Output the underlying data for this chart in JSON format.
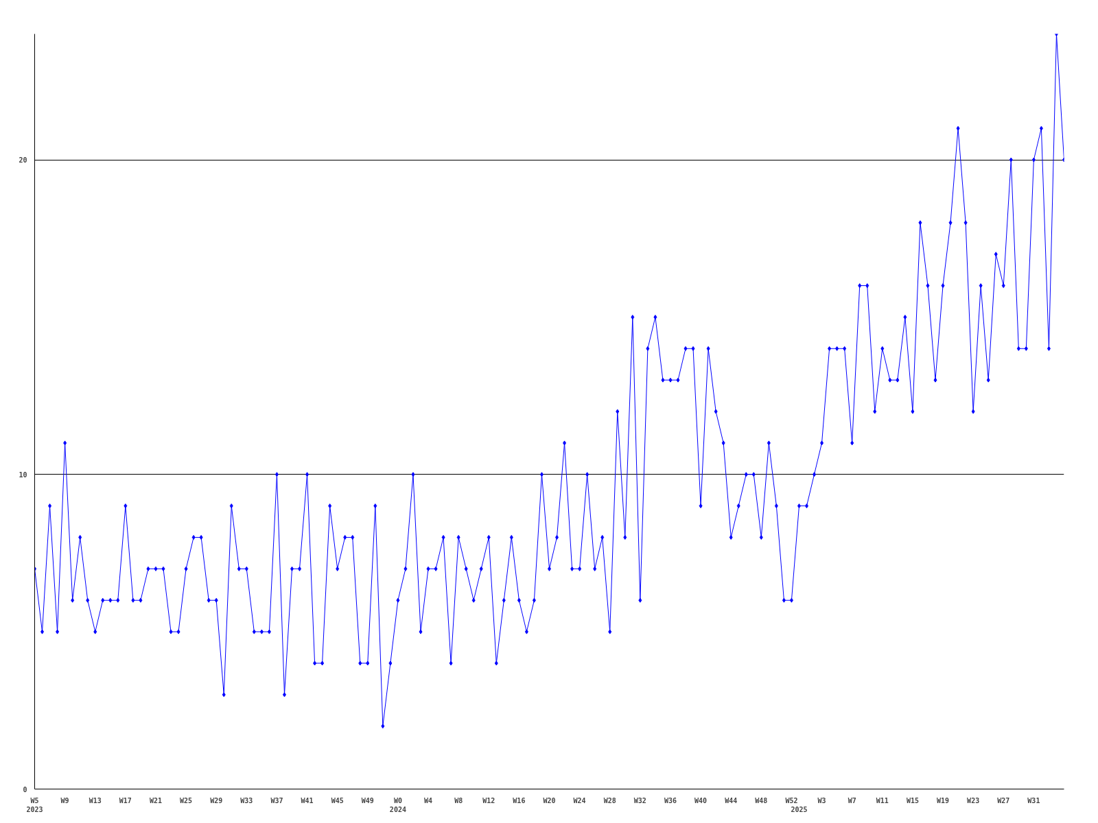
{
  "chart_data": {
    "type": "line",
    "categories": [
      "W5\n2023",
      null,
      null,
      null,
      "W9",
      null,
      null,
      null,
      "W13",
      null,
      null,
      null,
      "W17",
      null,
      null,
      null,
      "W21",
      null,
      null,
      null,
      "W25",
      null,
      null,
      null,
      "W29",
      null,
      null,
      null,
      "W33",
      null,
      null,
      null,
      "W37",
      null,
      null,
      null,
      "W41",
      null,
      null,
      null,
      "W45",
      null,
      null,
      null,
      "W49",
      null,
      null,
      null,
      "W0\n2024",
      null,
      null,
      null,
      "W4",
      null,
      null,
      null,
      "W8",
      null,
      null,
      null,
      "W12",
      null,
      null,
      null,
      "W16",
      null,
      null,
      null,
      "W20",
      null,
      null,
      null,
      "W24",
      null,
      null,
      null,
      "W28",
      null,
      null,
      null,
      "W32",
      null,
      null,
      null,
      "W36",
      null,
      null,
      null,
      "W40",
      null,
      null,
      null,
      "W44",
      null,
      null,
      null,
      "W48",
      null,
      null,
      null,
      "W52",
      "\n2025",
      null,
      null,
      "W3",
      null,
      null,
      null,
      "W7",
      null,
      null,
      null,
      "W11",
      null,
      null,
      null,
      "W15",
      null,
      null,
      null,
      "W19",
      null,
      null,
      null,
      "W23",
      null,
      null,
      null,
      "W27",
      null,
      null,
      null,
      "W31",
      null,
      null,
      null,
      null
    ],
    "series": [
      {
        "color": "#0000ff",
        "values": [
          7,
          5,
          9,
          5,
          11,
          6,
          8,
          6,
          5,
          6,
          6,
          6,
          9,
          6,
          6,
          7,
          7,
          7,
          5,
          5,
          7,
          8,
          8,
          6,
          6,
          3,
          9,
          7,
          7,
          5,
          5,
          5,
          10,
          3,
          7,
          7,
          10,
          4,
          4,
          9,
          7,
          8,
          8,
          4,
          4,
          9,
          2,
          4,
          6,
          7,
          10,
          5,
          7,
          7,
          8,
          4,
          8,
          7,
          6,
          7,
          8,
          4,
          6,
          8,
          6,
          5,
          6,
          10,
          7,
          8,
          11,
          7,
          7,
          10,
          7,
          8,
          5,
          12,
          8,
          15,
          6,
          14,
          15,
          13,
          13,
          13,
          14,
          14,
          9,
          14,
          12,
          11,
          8,
          9,
          10,
          10,
          8,
          11,
          9,
          6,
          6,
          9,
          9,
          10,
          11,
          14,
          14,
          14,
          11,
          16,
          16,
          12,
          14,
          13,
          13,
          15,
          12,
          18,
          16,
          13,
          16,
          18,
          21,
          18,
          12,
          16,
          13,
          17,
          16,
          20,
          14,
          14,
          20,
          21,
          14,
          24,
          20
        ]
      }
    ],
    "ylim": [
      0,
      24
    ],
    "yticks": [
      0,
      10,
      20
    ],
    "grid": "y",
    "marker": "diamond",
    "line_style": "solid"
  }
}
